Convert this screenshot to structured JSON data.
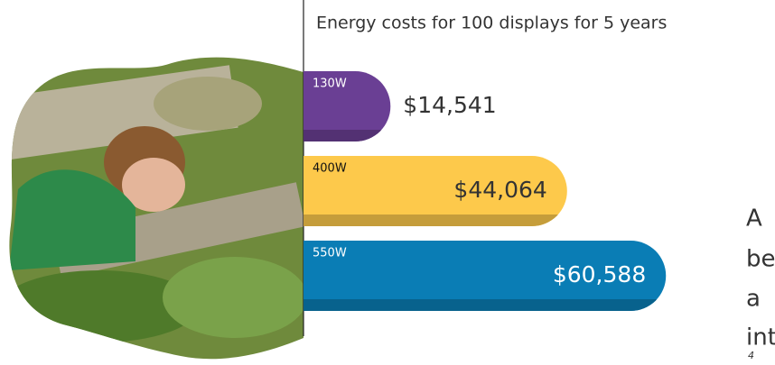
{
  "chart_data": {
    "type": "bar",
    "orientation": "horizontal",
    "title": "Energy costs for 100 displays for 5 years",
    "categories": [
      "130W",
      "400W",
      "550W"
    ],
    "values": [
      14541,
      44064,
      60588
    ],
    "value_labels": [
      "$14,541",
      "$44,064",
      "$60,588"
    ],
    "colors": [
      "#6a3f94",
      "#fdc94b",
      "#0a7db5"
    ]
  },
  "side_text": {
    "lines": [
      "A",
      "be",
      "a",
      "int"
    ],
    "footnote": "4"
  }
}
